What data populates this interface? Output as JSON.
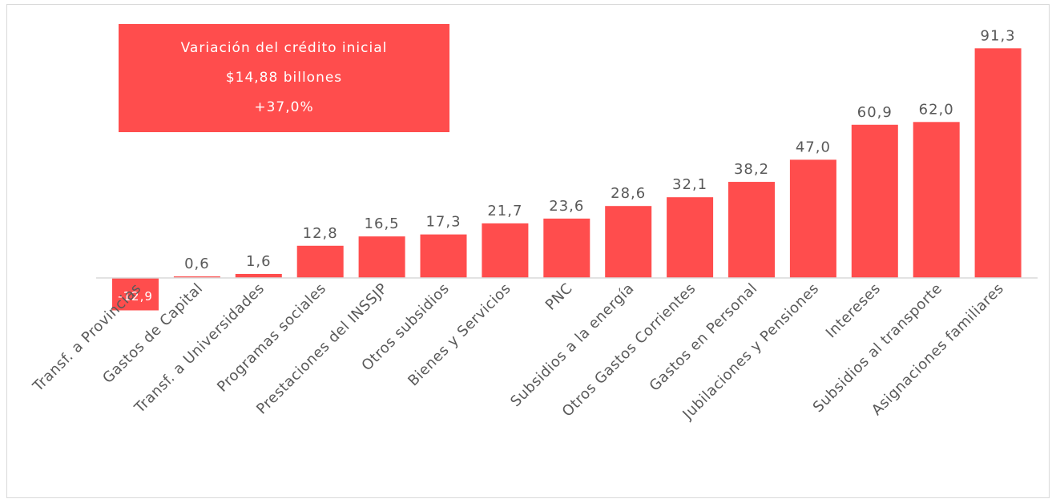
{
  "chart_data": {
    "type": "bar",
    "categories": [
      "Transf. a Provincias",
      "Gastos de Capital",
      "Transf. a Universidades",
      "Programas sociales",
      "Prestaciones del INSSJP",
      "Otros subsidios",
      "Bienes y Servicios",
      "PNC",
      "Subsidios a la energía",
      "Otros Gastos Corrientes",
      "Gastos en Personal",
      "Jubilaciones y Pensiones",
      "Intereses",
      "Subsidios al transporte",
      "Asignaciones familiares"
    ],
    "values": [
      -12.9,
      0.6,
      1.6,
      12.8,
      16.5,
      17.3,
      21.7,
      23.6,
      28.6,
      32.1,
      38.2,
      47.0,
      60.9,
      62.0,
      91.3
    ],
    "value_labels": [
      "-12,9",
      "0,6",
      "1,6",
      "12,8",
      "16,5",
      "17,3",
      "21,7",
      "23,6",
      "28,6",
      "32,1",
      "38,2",
      "47,0",
      "60,9",
      "62,0",
      "91,3"
    ],
    "bar_color": "#ff4d4d",
    "grid": false,
    "legend": "none"
  },
  "annotation": {
    "line1": "Variación del crédito inicial",
    "line2": "$14,88  billones",
    "line3": "+37,0%"
  }
}
